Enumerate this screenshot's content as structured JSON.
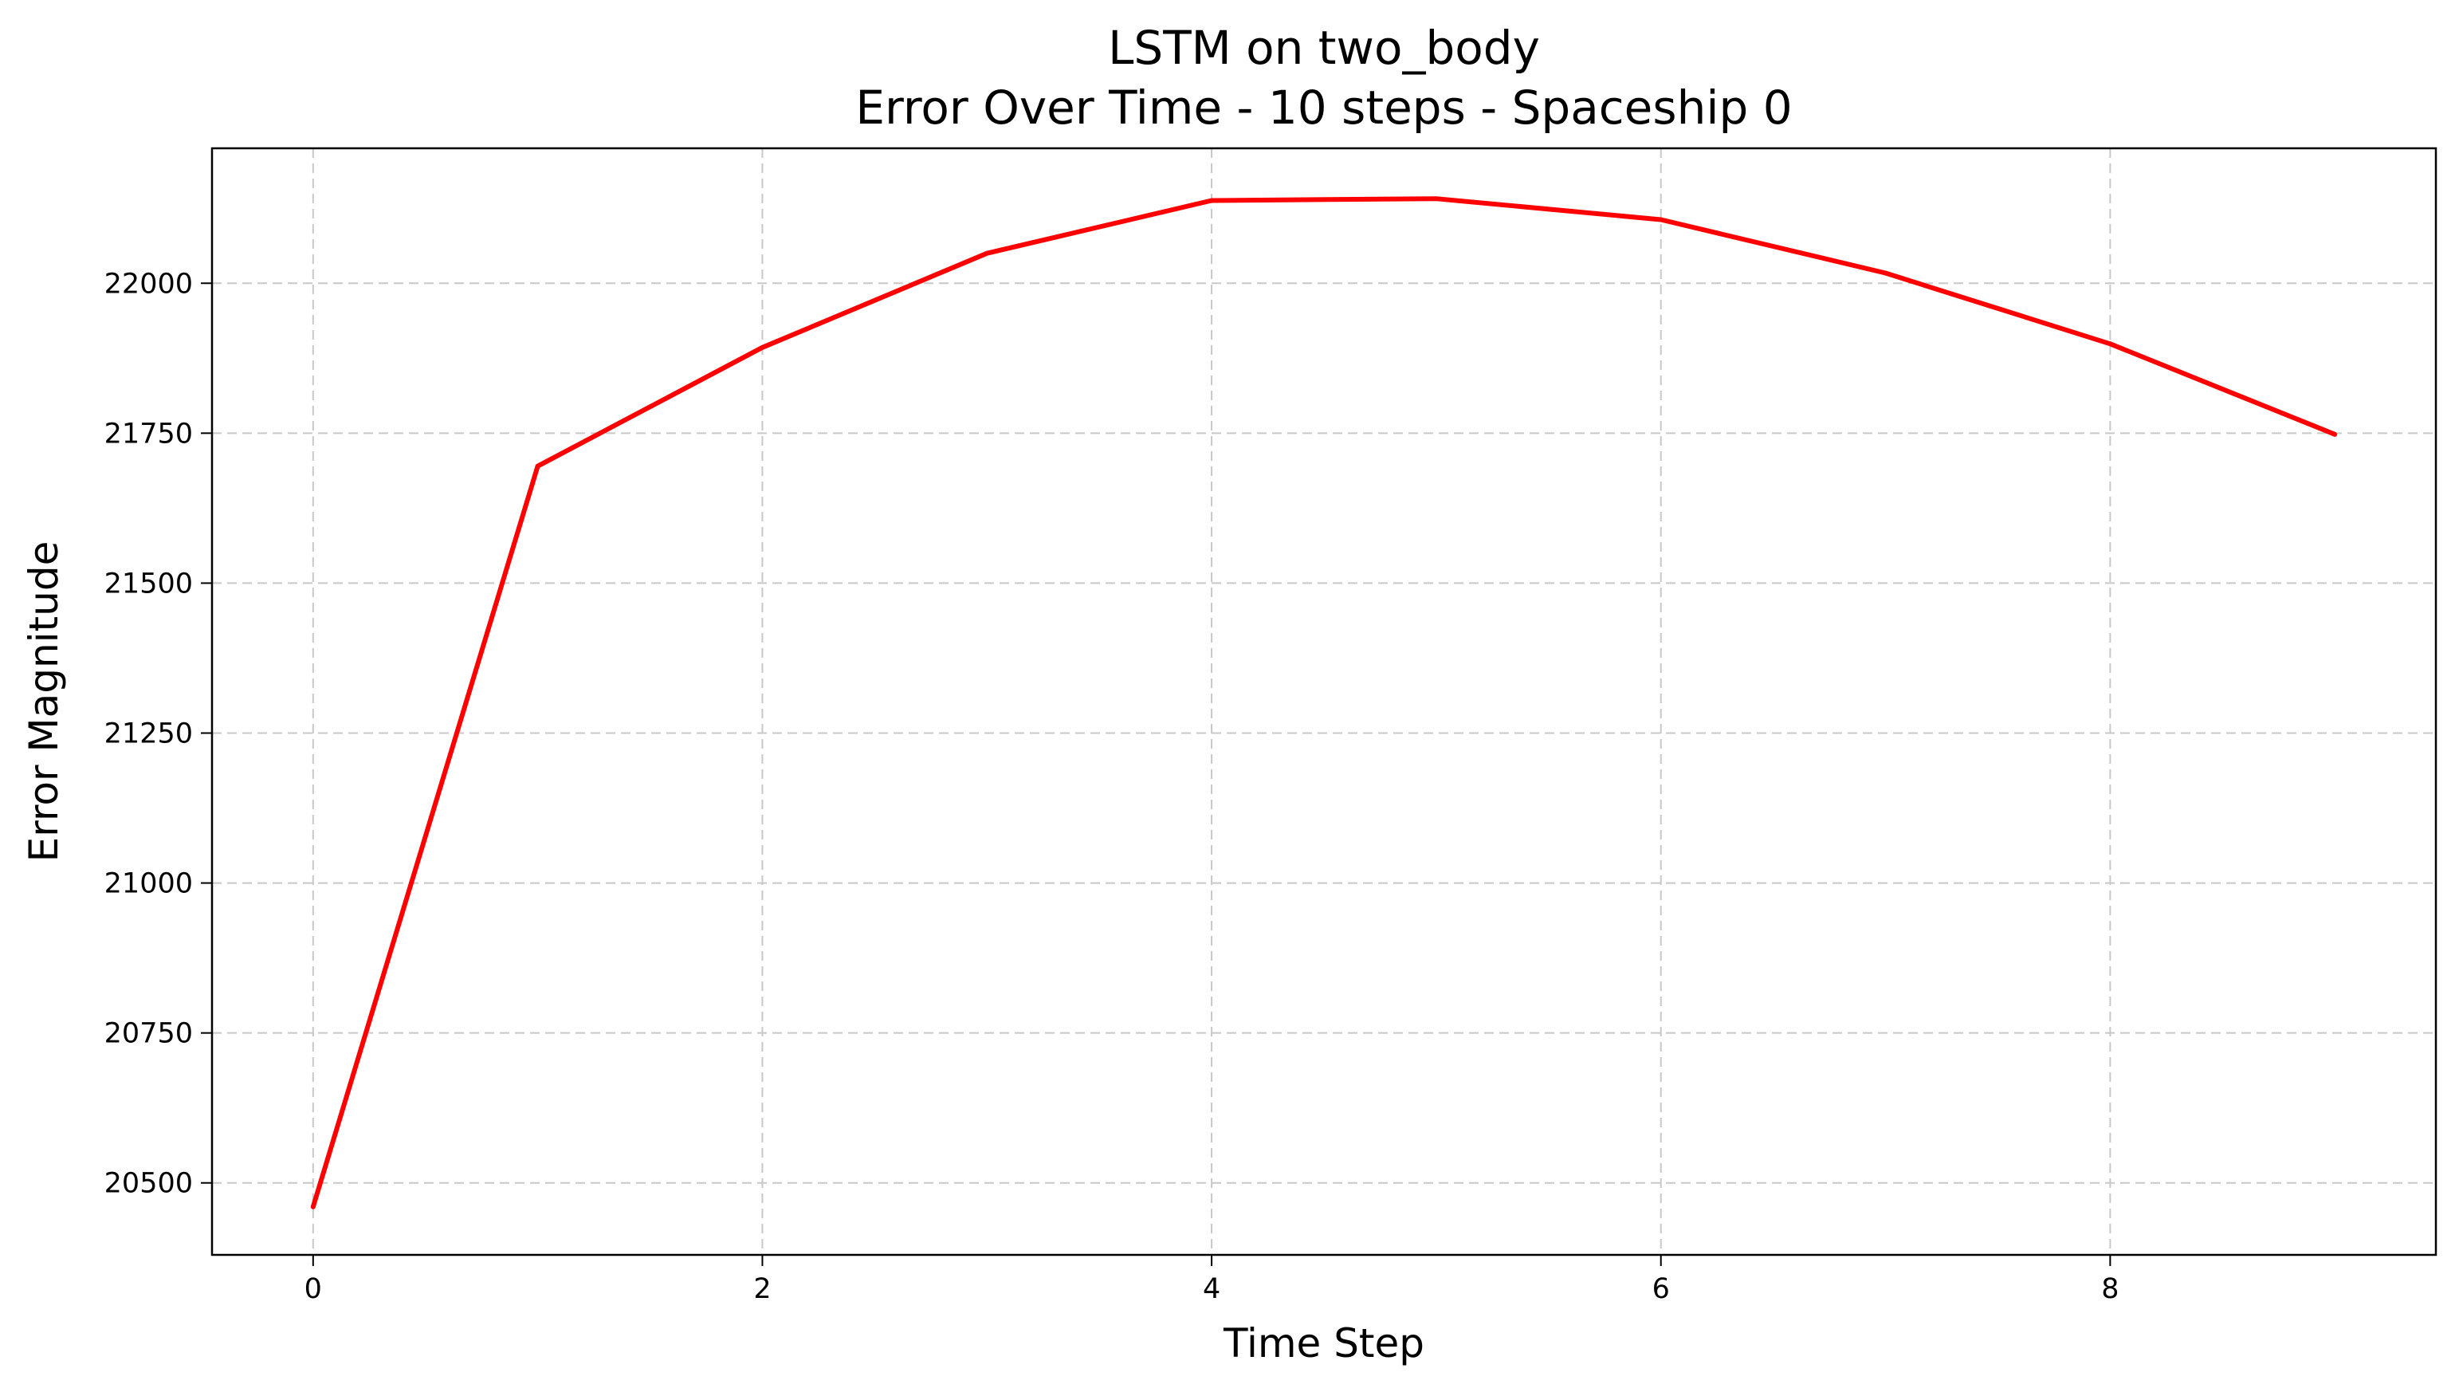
{
  "chart_data": {
    "type": "line",
    "title_line1": "LSTM on two_body",
    "title_line2": "Error Over Time - 10 steps - Spaceship 0",
    "xlabel": "Time Step",
    "ylabel": "Error Magnitude",
    "xlim": [
      -0.45,
      9.45
    ],
    "ylim": [
      20380,
      22225
    ],
    "xticks": [
      0,
      2,
      4,
      6,
      8
    ],
    "yticks": [
      20500,
      20750,
      21000,
      21250,
      21500,
      21750,
      22000
    ],
    "grid": true,
    "series": [
      {
        "color": "#ff0000",
        "x": [
          0,
          1,
          2,
          3,
          4,
          5,
          6,
          7,
          8,
          9
        ],
        "y": [
          20460,
          21695,
          21893,
          22050,
          22138,
          22141,
          22106,
          22017,
          21899,
          21748
        ]
      }
    ]
  }
}
